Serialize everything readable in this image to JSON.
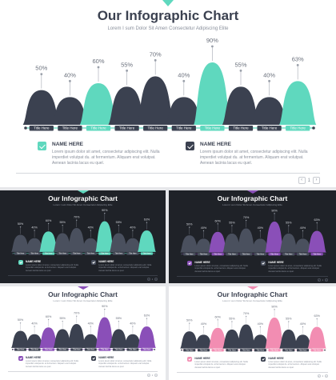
{
  "title": "Our Infographic Chart",
  "subtitle": "Lorem I sum Dolor Sit Amen Consectetur Adipiscing Elite",
  "colors": {
    "dark_bar": "#3b4150",
    "teal": "#5fd8be",
    "purple": "#8a4fb8",
    "pink": "#f28db2",
    "light_bg": "#ffffff",
    "dark_bg": "#1f2228"
  },
  "chart_data": {
    "type": "area",
    "categories": [
      "Title Here",
      "Title Here",
      "Title Here",
      "Title Here",
      "Title Here",
      "Title Here",
      "Title Here",
      "Title Here",
      "Title Here",
      "Title Here"
    ],
    "values": [
      50,
      40,
      60,
      55,
      70,
      40,
      90,
      55,
      40,
      63
    ],
    "value_labels": [
      "50%",
      "40%",
      "60%",
      "55%",
      "70%",
      "40%",
      "90%",
      "55%",
      "40%",
      "63%"
    ],
    "highlighted": [
      false,
      false,
      true,
      false,
      false,
      false,
      true,
      false,
      false,
      true
    ],
    "ylim": [
      0,
      100
    ]
  },
  "features": [
    {
      "name": "NAME HERE",
      "body": "Lorem ipsum dolor sit amet, consectetur adipiscing elit. Nulla imperdiet volutpat du. at fermentum. Aliquam erat volutpat. Aenean lacinia lacus eu quel."
    },
    {
      "name": "NAME HERE",
      "body": "Lorem ipsum dolor sit amet, consectetur adipiscing elit. Nulla imperdiet volutpat du. at fermentum. Aliquam erat volutpat. Aenean lacinia lacus eu quel."
    }
  ],
  "pager": {
    "prev_icon": "chevron-left-icon",
    "next_icon": "chevron-right-icon",
    "page_number": "1"
  },
  "slides": [
    {
      "theme": "light",
      "accent": "teal"
    },
    {
      "theme": "dark",
      "accent": "teal"
    },
    {
      "theme": "dark",
      "accent": "purple"
    },
    {
      "theme": "light",
      "accent": "purple"
    },
    {
      "theme": "light",
      "accent": "pink"
    }
  ]
}
